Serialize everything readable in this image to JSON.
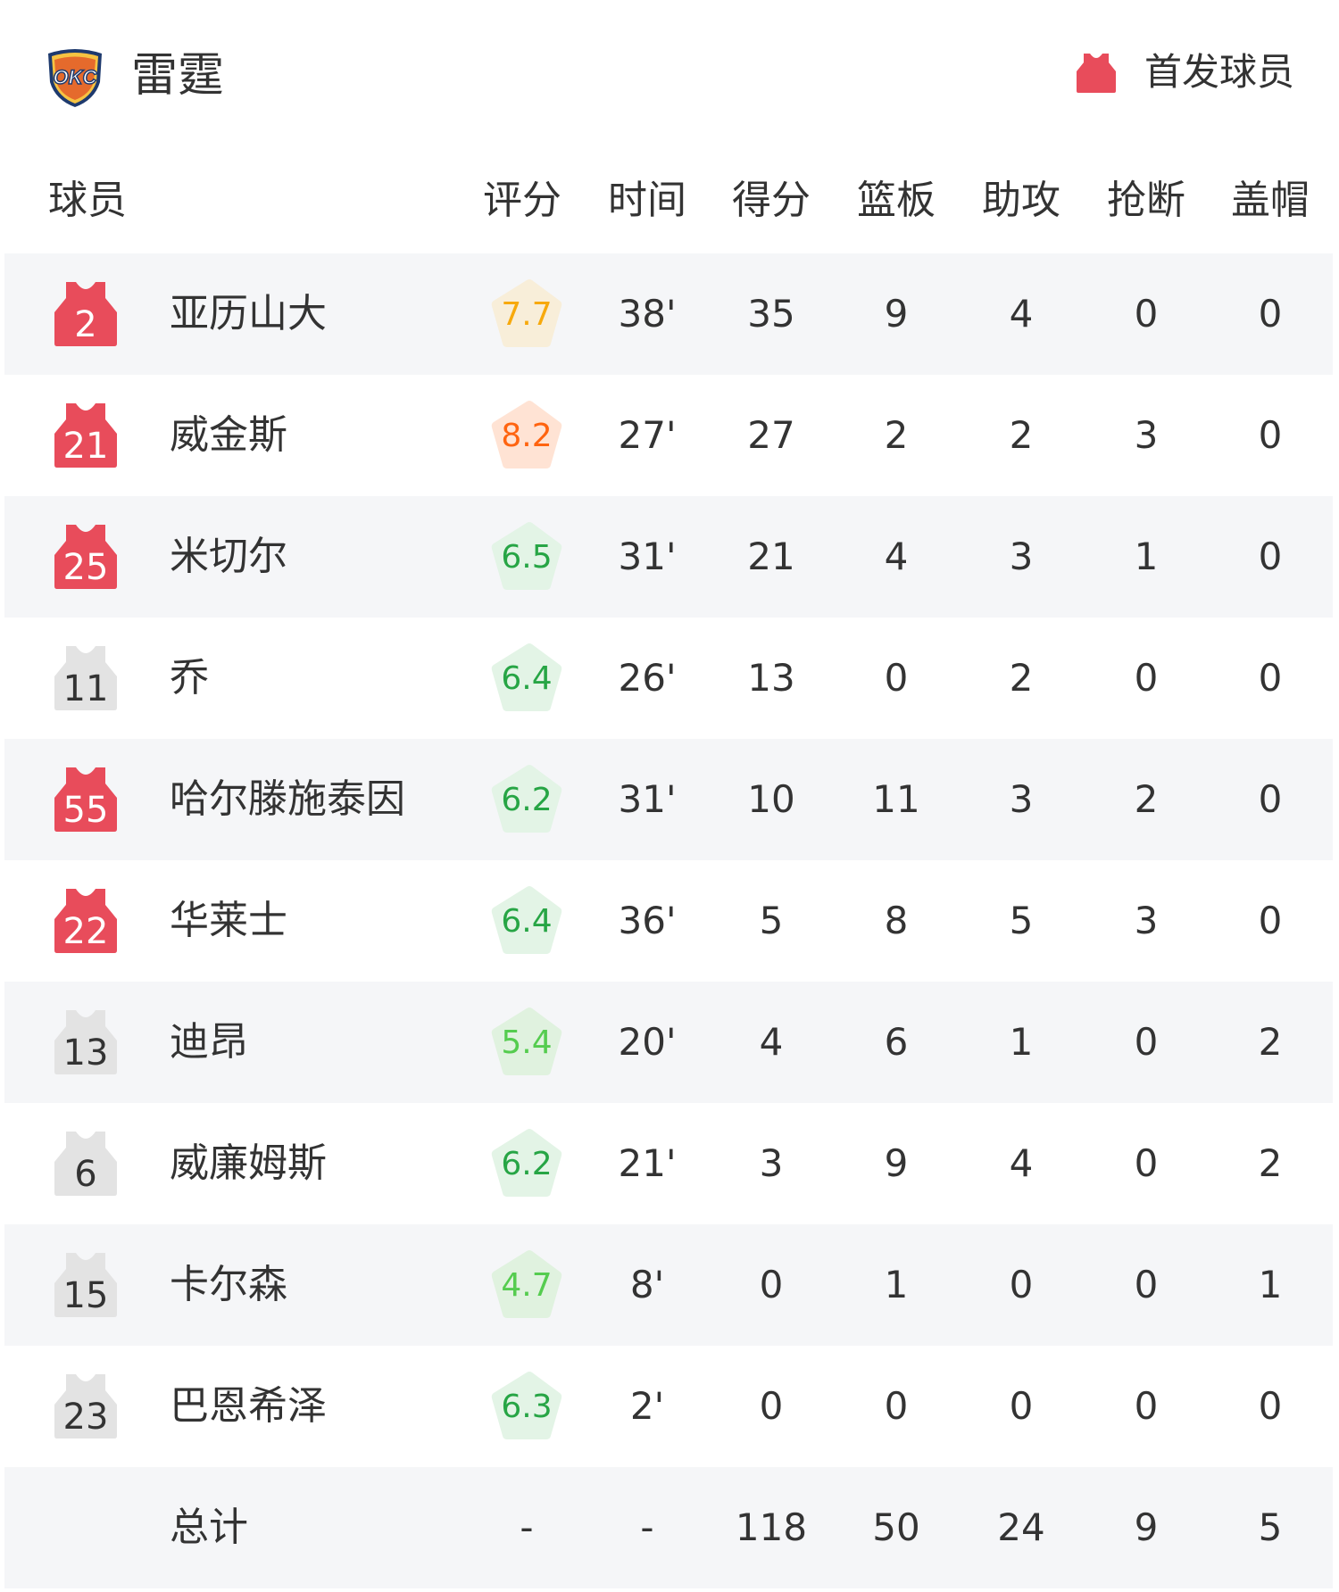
{
  "header": {
    "team_name": "雷霆",
    "logo_text": "OKC",
    "legend_label": "首发球员",
    "legend_icon": "jersey-icon"
  },
  "colors": {
    "starter": "#e84c5b",
    "bench": "#e3e3e3",
    "row_alt": "#f5f6f8"
  },
  "columns": {
    "player": "球员",
    "rating": "评分",
    "minutes": "时间",
    "points": "得分",
    "rebounds": "篮板",
    "assists": "助攻",
    "steals": "抢断",
    "blocks": "盖帽"
  },
  "players": [
    {
      "number": "2",
      "name": "亚历山大",
      "starter": true,
      "rating": "7.7",
      "minutes": "38'",
      "points": "35",
      "rebounds": "9",
      "assists": "4",
      "steals": "0",
      "blocks": "0"
    },
    {
      "number": "21",
      "name": "威金斯",
      "starter": true,
      "rating": "8.2",
      "minutes": "27'",
      "points": "27",
      "rebounds": "2",
      "assists": "2",
      "steals": "3",
      "blocks": "0"
    },
    {
      "number": "25",
      "name": "米切尔",
      "starter": true,
      "rating": "6.5",
      "minutes": "31'",
      "points": "21",
      "rebounds": "4",
      "assists": "3",
      "steals": "1",
      "blocks": "0"
    },
    {
      "number": "11",
      "name": "乔",
      "starter": false,
      "rating": "6.4",
      "minutes": "26'",
      "points": "13",
      "rebounds": "0",
      "assists": "2",
      "steals": "0",
      "blocks": "0"
    },
    {
      "number": "55",
      "name": "哈尔滕施泰因",
      "starter": true,
      "rating": "6.2",
      "minutes": "31'",
      "points": "10",
      "rebounds": "11",
      "assists": "3",
      "steals": "2",
      "blocks": "0"
    },
    {
      "number": "22",
      "name": "华莱士",
      "starter": true,
      "rating": "6.4",
      "minutes": "36'",
      "points": "5",
      "rebounds": "8",
      "assists": "5",
      "steals": "3",
      "blocks": "0"
    },
    {
      "number": "13",
      "name": "迪昂",
      "starter": false,
      "rating": "5.4",
      "minutes": "20'",
      "points": "4",
      "rebounds": "6",
      "assists": "1",
      "steals": "0",
      "blocks": "2"
    },
    {
      "number": "6",
      "name": "威廉姆斯",
      "starter": false,
      "rating": "6.2",
      "minutes": "21'",
      "points": "3",
      "rebounds": "9",
      "assists": "4",
      "steals": "0",
      "blocks": "2"
    },
    {
      "number": "15",
      "name": "卡尔森",
      "starter": false,
      "rating": "4.7",
      "minutes": "8'",
      "points": "0",
      "rebounds": "1",
      "assists": "0",
      "steals": "0",
      "blocks": "1"
    },
    {
      "number": "23",
      "name": "巴恩希泽",
      "starter": false,
      "rating": "6.3",
      "minutes": "2'",
      "points": "0",
      "rebounds": "0",
      "assists": "0",
      "steals": "0",
      "blocks": "0"
    }
  ],
  "totals": {
    "label": "总计",
    "rating": "-",
    "minutes": "-",
    "points": "118",
    "rebounds": "50",
    "assists": "24",
    "steals": "9",
    "blocks": "5"
  }
}
